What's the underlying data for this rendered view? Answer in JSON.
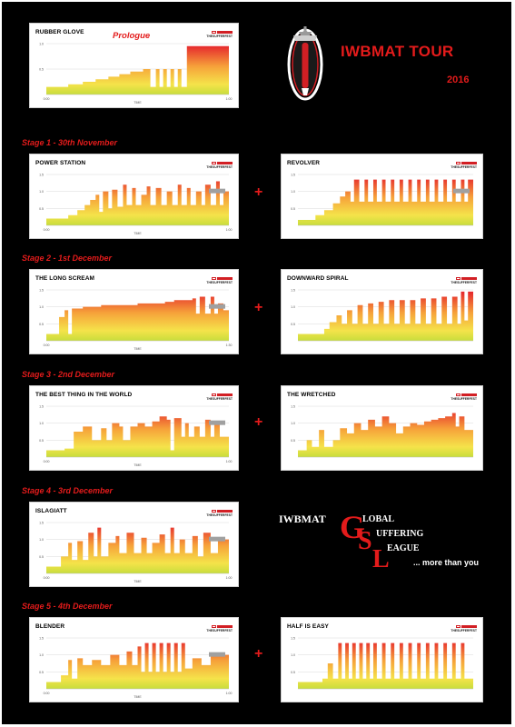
{
  "header": {
    "tour_title": "IWBMAT TOUR",
    "tour_year": "2016",
    "prologue_label": "Prologue"
  },
  "card_common": {
    "logo_text": "THESUFFERFEST",
    "time_label": "TIME",
    "accent": "#d21f24"
  },
  "stages": [
    {
      "label": "Stage 1 - 30th November"
    },
    {
      "label": "Stage 2 - 1st December"
    },
    {
      "label": "Stage 3 - 2nd December"
    },
    {
      "label": "Stage 4 - 3rd December"
    },
    {
      "label": "Stage 5 - 4th December"
    }
  ],
  "plus_sign": "+",
  "gsl": {
    "brand": "IWBMAT",
    "word1": "LOBAL",
    "word2": "UFFERING",
    "word3": "EAGUE",
    "letter1": "G",
    "letter2": "S",
    "letter3": "L",
    "tagline": "... more than you"
  },
  "chart_data": [
    {
      "type": "area",
      "title": "RUBBER GLOVE",
      "xlabel": "TIME",
      "y_ticks": [
        "1.0",
        "0.5"
      ],
      "x_ticks": [
        "0:00",
        "1:00"
      ],
      "ylim": [
        0,
        1.0
      ],
      "legend": false,
      "profile": [
        [
          0,
          0.15
        ],
        [
          0.12,
          0.2
        ],
        [
          0.2,
          0.25
        ],
        [
          0.27,
          0.3
        ],
        [
          0.34,
          0.35
        ],
        [
          0.4,
          0.4
        ],
        [
          0.46,
          0.45
        ],
        [
          0.53,
          0.5
        ],
        [
          0.57,
          0.15
        ],
        [
          0.6,
          0.5
        ],
        [
          0.62,
          0.15
        ],
        [
          0.64,
          0.5
        ],
        [
          0.66,
          0.15
        ],
        [
          0.68,
          0.5
        ],
        [
          0.7,
          0.15
        ],
        [
          0.72,
          0.5
        ],
        [
          0.74,
          0.15
        ],
        [
          0.77,
          0.95
        ],
        [
          1.0,
          0.95
        ]
      ]
    },
    {
      "type": "area",
      "title": "POWER STATION",
      "xlabel": "TIME",
      "y_ticks": [
        "1.5",
        "1.0",
        "0.5"
      ],
      "x_ticks": [
        "0:00",
        "1:00"
      ],
      "ylim": [
        0,
        1.5
      ],
      "legend": true,
      "profile": [
        [
          0,
          0.2
        ],
        [
          0.12,
          0.3
        ],
        [
          0.17,
          0.45
        ],
        [
          0.21,
          0.6
        ],
        [
          0.24,
          0.75
        ],
        [
          0.27,
          0.9
        ],
        [
          0.29,
          0.4
        ],
        [
          0.31,
          1.0
        ],
        [
          0.34,
          0.5
        ],
        [
          0.36,
          1.05
        ],
        [
          0.39,
          0.55
        ],
        [
          0.42,
          1.2
        ],
        [
          0.44,
          0.6
        ],
        [
          0.47,
          1.1
        ],
        [
          0.49,
          0.6
        ],
        [
          0.52,
          0.9
        ],
        [
          0.55,
          1.15
        ],
        [
          0.57,
          0.6
        ],
        [
          0.6,
          1.1
        ],
        [
          0.63,
          0.6
        ],
        [
          0.66,
          1.0
        ],
        [
          0.69,
          0.6
        ],
        [
          0.72,
          1.2
        ],
        [
          0.74,
          0.6
        ],
        [
          0.77,
          1.1
        ],
        [
          0.79,
          0.6
        ],
        [
          0.82,
          1.0
        ],
        [
          0.85,
          0.6
        ],
        [
          0.87,
          1.2
        ],
        [
          0.9,
          0.6
        ],
        [
          0.93,
          1.3
        ],
        [
          0.95,
          0.6
        ],
        [
          0.97,
          1.0
        ],
        [
          1.0,
          0.4
        ]
      ]
    },
    {
      "type": "area",
      "title": "REVOLVER",
      "xlabel": "",
      "y_ticks": [
        "1.5",
        "1.0",
        "0.5"
      ],
      "x_ticks": [],
      "ylim": [
        0,
        1.5
      ],
      "legend": true,
      "profile": [
        [
          0,
          0.15
        ],
        [
          0.1,
          0.3
        ],
        [
          0.15,
          0.45
        ],
        [
          0.2,
          0.65
        ],
        [
          0.24,
          0.85
        ],
        [
          0.27,
          1.0
        ],
        [
          0.3,
          0.7
        ],
        [
          0.32,
          1.35
        ],
        [
          0.35,
          0.7
        ],
        [
          0.38,
          1.35
        ],
        [
          0.4,
          0.7
        ],
        [
          0.43,
          1.35
        ],
        [
          0.45,
          0.7
        ],
        [
          0.48,
          1.35
        ],
        [
          0.5,
          0.7
        ],
        [
          0.53,
          1.35
        ],
        [
          0.55,
          0.7
        ],
        [
          0.58,
          1.35
        ],
        [
          0.6,
          0.7
        ],
        [
          0.63,
          1.35
        ],
        [
          0.65,
          0.7
        ],
        [
          0.68,
          1.35
        ],
        [
          0.7,
          0.7
        ],
        [
          0.73,
          1.35
        ],
        [
          0.75,
          0.7
        ],
        [
          0.78,
          1.35
        ],
        [
          0.8,
          0.7
        ],
        [
          0.83,
          1.35
        ],
        [
          0.85,
          0.7
        ],
        [
          0.88,
          1.35
        ],
        [
          0.9,
          0.7
        ],
        [
          0.93,
          1.35
        ],
        [
          0.95,
          0.7
        ],
        [
          0.97,
          1.35
        ],
        [
          1.0,
          0.3
        ]
      ]
    },
    {
      "type": "area",
      "title": "THE LONG SCREAM",
      "xlabel": "TIME",
      "y_ticks": [
        "1.5",
        "1.0",
        "0.5"
      ],
      "x_ticks": [
        "0:00",
        "1:30"
      ],
      "ylim": [
        0,
        1.5
      ],
      "legend": true,
      "profile": [
        [
          0,
          0.2
        ],
        [
          0.05,
          0.2
        ],
        [
          0.07,
          0.7
        ],
        [
          0.1,
          0.9
        ],
        [
          0.12,
          0.2
        ],
        [
          0.14,
          0.95
        ],
        [
          0.2,
          1.0
        ],
        [
          0.3,
          1.05
        ],
        [
          0.4,
          1.05
        ],
        [
          0.5,
          1.1
        ],
        [
          0.6,
          1.1
        ],
        [
          0.65,
          1.15
        ],
        [
          0.7,
          1.2
        ],
        [
          0.8,
          1.25
        ],
        [
          0.82,
          0.8
        ],
        [
          0.84,
          1.3
        ],
        [
          0.87,
          0.8
        ],
        [
          0.9,
          1.3
        ],
        [
          0.92,
          0.8
        ],
        [
          0.94,
          1.1
        ],
        [
          0.97,
          0.9
        ],
        [
          1.0,
          0.3
        ]
      ]
    },
    {
      "type": "area",
      "title": "DOWNWARD SPIRAL",
      "xlabel": "",
      "y_ticks": [
        "1.5",
        "1.0",
        "0.5"
      ],
      "x_ticks": [],
      "ylim": [
        0,
        1.5
      ],
      "legend": false,
      "profile": [
        [
          0,
          0.2
        ],
        [
          0.15,
          0.35
        ],
        [
          0.18,
          0.55
        ],
        [
          0.22,
          0.75
        ],
        [
          0.25,
          0.5
        ],
        [
          0.28,
          0.9
        ],
        [
          0.31,
          0.5
        ],
        [
          0.34,
          1.05
        ],
        [
          0.37,
          0.5
        ],
        [
          0.4,
          1.1
        ],
        [
          0.43,
          0.5
        ],
        [
          0.46,
          1.15
        ],
        [
          0.49,
          0.5
        ],
        [
          0.52,
          1.2
        ],
        [
          0.55,
          0.5
        ],
        [
          0.58,
          1.2
        ],
        [
          0.61,
          0.5
        ],
        [
          0.64,
          1.2
        ],
        [
          0.67,
          0.5
        ],
        [
          0.7,
          1.25
        ],
        [
          0.73,
          0.5
        ],
        [
          0.76,
          1.25
        ],
        [
          0.79,
          0.5
        ],
        [
          0.82,
          1.3
        ],
        [
          0.85,
          0.5
        ],
        [
          0.88,
          1.3
        ],
        [
          0.91,
          0.5
        ],
        [
          0.93,
          1.45
        ],
        [
          0.95,
          0.6
        ],
        [
          0.97,
          1.45
        ],
        [
          1.0,
          0.3
        ]
      ]
    },
    {
      "type": "area",
      "title": "THE BEST THING IN THE WORLD",
      "xlabel": "TIME",
      "y_ticks": [
        "1.5",
        "1.0",
        "0.5"
      ],
      "x_ticks": [
        "0:00",
        "1:00"
      ],
      "ylim": [
        0,
        1.5
      ],
      "legend": true,
      "profile": [
        [
          0,
          0.2
        ],
        [
          0.1,
          0.25
        ],
        [
          0.15,
          0.75
        ],
        [
          0.2,
          0.9
        ],
        [
          0.25,
          0.5
        ],
        [
          0.3,
          0.85
        ],
        [
          0.33,
          0.5
        ],
        [
          0.36,
          1.0
        ],
        [
          0.4,
          0.9
        ],
        [
          0.42,
          0.5
        ],
        [
          0.46,
          0.9
        ],
        [
          0.5,
          1.0
        ],
        [
          0.54,
          0.9
        ],
        [
          0.58,
          1.05
        ],
        [
          0.62,
          1.2
        ],
        [
          0.66,
          1.1
        ],
        [
          0.68,
          0.2
        ],
        [
          0.7,
          1.15
        ],
        [
          0.74,
          0.6
        ],
        [
          0.76,
          1.0
        ],
        [
          0.78,
          0.6
        ],
        [
          0.81,
          0.9
        ],
        [
          0.84,
          0.6
        ],
        [
          0.87,
          1.1
        ],
        [
          0.9,
          0.6
        ],
        [
          0.92,
          1.0
        ],
        [
          0.95,
          0.6
        ],
        [
          1.0,
          0.3
        ]
      ]
    },
    {
      "type": "area",
      "title": "THE WRETCHED",
      "xlabel": "",
      "y_ticks": [
        "1.5",
        "1.0",
        "0.5"
      ],
      "x_ticks": [],
      "ylim": [
        0,
        1.5
      ],
      "legend": false,
      "profile": [
        [
          0,
          0.2
        ],
        [
          0.05,
          0.5
        ],
        [
          0.08,
          0.3
        ],
        [
          0.12,
          0.8
        ],
        [
          0.15,
          0.3
        ],
        [
          0.2,
          0.5
        ],
        [
          0.24,
          0.85
        ],
        [
          0.28,
          0.7
        ],
        [
          0.32,
          1.0
        ],
        [
          0.36,
          0.8
        ],
        [
          0.4,
          1.1
        ],
        [
          0.44,
          0.9
        ],
        [
          0.48,
          1.2
        ],
        [
          0.52,
          1.0
        ],
        [
          0.56,
          0.7
        ],
        [
          0.6,
          0.9
        ],
        [
          0.64,
          1.0
        ],
        [
          0.68,
          0.95
        ],
        [
          0.72,
          1.05
        ],
        [
          0.76,
          1.1
        ],
        [
          0.8,
          1.15
        ],
        [
          0.84,
          1.2
        ],
        [
          0.88,
          1.3
        ],
        [
          0.9,
          0.9
        ],
        [
          0.92,
          1.2
        ],
        [
          0.95,
          0.8
        ],
        [
          1.0,
          0.3
        ]
      ]
    },
    {
      "type": "area",
      "title": "ISLAGIATT",
      "xlabel": "TIME",
      "y_ticks": [
        "1.5",
        "1.0",
        "0.5"
      ],
      "x_ticks": [
        "0:00",
        "1:00"
      ],
      "ylim": [
        0,
        1.5
      ],
      "legend": true,
      "profile": [
        [
          0,
          0.2
        ],
        [
          0.08,
          0.5
        ],
        [
          0.12,
          0.9
        ],
        [
          0.14,
          0.4
        ],
        [
          0.17,
          0.95
        ],
        [
          0.2,
          0.4
        ],
        [
          0.23,
          1.2
        ],
        [
          0.26,
          0.5
        ],
        [
          0.28,
          1.35
        ],
        [
          0.3,
          0.5
        ],
        [
          0.34,
          0.9
        ],
        [
          0.38,
          1.1
        ],
        [
          0.4,
          0.6
        ],
        [
          0.44,
          1.2
        ],
        [
          0.48,
          0.6
        ],
        [
          0.52,
          1.05
        ],
        [
          0.55,
          0.6
        ],
        [
          0.58,
          0.9
        ],
        [
          0.62,
          1.15
        ],
        [
          0.65,
          0.6
        ],
        [
          0.68,
          1.35
        ],
        [
          0.7,
          0.6
        ],
        [
          0.73,
          1.0
        ],
        [
          0.76,
          0.6
        ],
        [
          0.8,
          1.1
        ],
        [
          0.83,
          0.5
        ],
        [
          0.86,
          1.2
        ],
        [
          0.9,
          0.6
        ],
        [
          0.94,
          1.0
        ],
        [
          1.0,
          0.3
        ]
      ]
    },
    {
      "type": "area",
      "title": "BLENDER",
      "xlabel": "TIME",
      "y_ticks": [
        "1.5",
        "1.0",
        "0.5"
      ],
      "x_ticks": [
        "0:00",
        "1:00"
      ],
      "ylim": [
        0,
        1.5
      ],
      "legend": true,
      "profile": [
        [
          0,
          0.2
        ],
        [
          0.08,
          0.4
        ],
        [
          0.12,
          0.85
        ],
        [
          0.14,
          0.3
        ],
        [
          0.17,
          0.9
        ],
        [
          0.2,
          0.7
        ],
        [
          0.25,
          0.85
        ],
        [
          0.3,
          0.7
        ],
        [
          0.35,
          1.0
        ],
        [
          0.4,
          0.7
        ],
        [
          0.44,
          1.1
        ],
        [
          0.47,
          0.7
        ],
        [
          0.5,
          1.25
        ],
        [
          0.52,
          0.5
        ],
        [
          0.54,
          1.35
        ],
        [
          0.56,
          0.5
        ],
        [
          0.58,
          1.35
        ],
        [
          0.6,
          0.5
        ],
        [
          0.62,
          1.35
        ],
        [
          0.64,
          0.5
        ],
        [
          0.66,
          1.35
        ],
        [
          0.68,
          0.5
        ],
        [
          0.7,
          1.35
        ],
        [
          0.72,
          0.5
        ],
        [
          0.74,
          1.35
        ],
        [
          0.76,
          0.6
        ],
        [
          0.8,
          0.9
        ],
        [
          0.85,
          0.7
        ],
        [
          0.9,
          1.0
        ],
        [
          1.0,
          0.3
        ]
      ]
    },
    {
      "type": "area",
      "title": "HALF IS EASY",
      "xlabel": "",
      "y_ticks": [
        "1.5",
        "1.0",
        "0.5"
      ],
      "x_ticks": [],
      "ylim": [
        0,
        1.5
      ],
      "legend": false,
      "profile": [
        [
          0,
          0.2
        ],
        [
          0.14,
          0.3
        ],
        [
          0.17,
          0.75
        ],
        [
          0.2,
          0.3
        ],
        [
          0.23,
          1.35
        ],
        [
          0.25,
          0.3
        ],
        [
          0.27,
          1.35
        ],
        [
          0.29,
          0.3
        ],
        [
          0.31,
          1.35
        ],
        [
          0.33,
          0.3
        ],
        [
          0.35,
          1.35
        ],
        [
          0.37,
          0.3
        ],
        [
          0.39,
          1.35
        ],
        [
          0.41,
          0.3
        ],
        [
          0.43,
          1.35
        ],
        [
          0.45,
          0.3
        ],
        [
          0.48,
          1.35
        ],
        [
          0.5,
          0.3
        ],
        [
          0.53,
          1.35
        ],
        [
          0.55,
          0.3
        ],
        [
          0.58,
          1.35
        ],
        [
          0.6,
          0.3
        ],
        [
          0.63,
          1.35
        ],
        [
          0.65,
          0.3
        ],
        [
          0.68,
          1.35
        ],
        [
          0.7,
          0.3
        ],
        [
          0.73,
          1.35
        ],
        [
          0.75,
          0.3
        ],
        [
          0.78,
          1.35
        ],
        [
          0.8,
          0.3
        ],
        [
          0.83,
          1.35
        ],
        [
          0.85,
          0.3
        ],
        [
          0.88,
          1.35
        ],
        [
          0.9,
          0.3
        ],
        [
          0.93,
          1.35
        ],
        [
          0.95,
          0.3
        ],
        [
          1.0,
          0.3
        ]
      ]
    }
  ]
}
